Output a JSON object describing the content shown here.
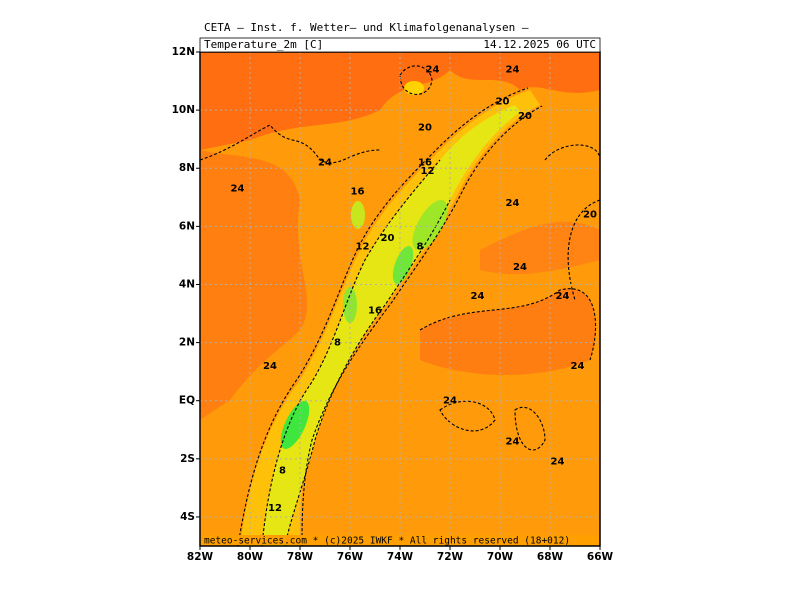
{
  "map": {
    "title": "CETA — Inst. f. Wetter— und Klimafolgenanalysen —",
    "subtitle": "Temperature_2m [C]",
    "valid_time": "14.12.2025 06 UTC",
    "footer": "meteo-services.com * (c)2025 IWKF * All rights reserved (18+012)",
    "lonlim": [
      -82,
      -66
    ],
    "latlim": [
      12,
      -5
    ],
    "lonticks": [
      {
        "value": -82,
        "label": "82W"
      },
      {
        "value": -80,
        "label": "80W"
      },
      {
        "value": -78,
        "label": "78W"
      },
      {
        "value": -76,
        "label": "76W"
      },
      {
        "value": -74,
        "label": "74W"
      },
      {
        "value": -72,
        "label": "72W"
      },
      {
        "value": -70,
        "label": "70W"
      },
      {
        "value": -68,
        "label": "68W"
      },
      {
        "value": -66,
        "label": "66W"
      }
    ],
    "latticks": [
      {
        "value": 12,
        "label": "12N"
      },
      {
        "value": 10,
        "label": "10N"
      },
      {
        "value": 8,
        "label": "8N"
      },
      {
        "value": 6,
        "label": "6N"
      },
      {
        "value": 4,
        "label": "4N"
      },
      {
        "value": 2,
        "label": "2N"
      },
      {
        "value": 0,
        "label": "EQ"
      },
      {
        "value": -2,
        "label": "2S"
      },
      {
        "value": -4,
        "label": "4S"
      }
    ],
    "contour_labels": [
      {
        "value": 24,
        "lon": -72.7,
        "lat": 11.4
      },
      {
        "value": 24,
        "lon": -69.5,
        "lat": 11.4
      },
      {
        "value": 24,
        "lon": -77.0,
        "lat": 8.2
      },
      {
        "value": 24,
        "lon": -80.5,
        "lat": 7.3
      },
      {
        "value": 24,
        "lon": -69.5,
        "lat": 6.8
      },
      {
        "value": 24,
        "lon": -69.2,
        "lat": 4.6
      },
      {
        "value": 24,
        "lon": -70.9,
        "lat": 3.6
      },
      {
        "value": 24,
        "lon": -67.5,
        "lat": 3.6
      },
      {
        "value": 24,
        "lon": -79.2,
        "lat": 1.2
      },
      {
        "value": 24,
        "lon": -66.9,
        "lat": 1.2
      },
      {
        "value": 24,
        "lon": -72.0,
        "lat": 0.0
      },
      {
        "value": 24,
        "lon": -69.5,
        "lat": -1.4
      },
      {
        "value": 24,
        "lon": -67.7,
        "lat": -2.1
      },
      {
        "value": 20,
        "lon": -69.9,
        "lat": 10.3
      },
      {
        "value": 20,
        "lon": -69.0,
        "lat": 9.8
      },
      {
        "value": 20,
        "lon": -73.0,
        "lat": 9.4
      },
      {
        "value": 20,
        "lon": -74.5,
        "lat": 5.6
      },
      {
        "value": 20,
        "lon": -66.4,
        "lat": 6.4
      },
      {
        "value": 16,
        "lon": -73.0,
        "lat": 8.2
      },
      {
        "value": 16,
        "lon": -75.7,
        "lat": 7.2
      },
      {
        "value": 16,
        "lon": -75.0,
        "lat": 3.1
      },
      {
        "value": 12,
        "lon": -72.9,
        "lat": 7.9
      },
      {
        "value": 12,
        "lon": -75.5,
        "lat": 5.3
      },
      {
        "value": 12,
        "lon": -79.0,
        "lat": -3.7
      },
      {
        "value": 8,
        "lon": -73.2,
        "lat": 5.3
      },
      {
        "value": 8,
        "lon": -76.5,
        "lat": 2.0
      },
      {
        "value": 8,
        "lon": -78.7,
        "lat": -2.4
      }
    ]
  }
}
